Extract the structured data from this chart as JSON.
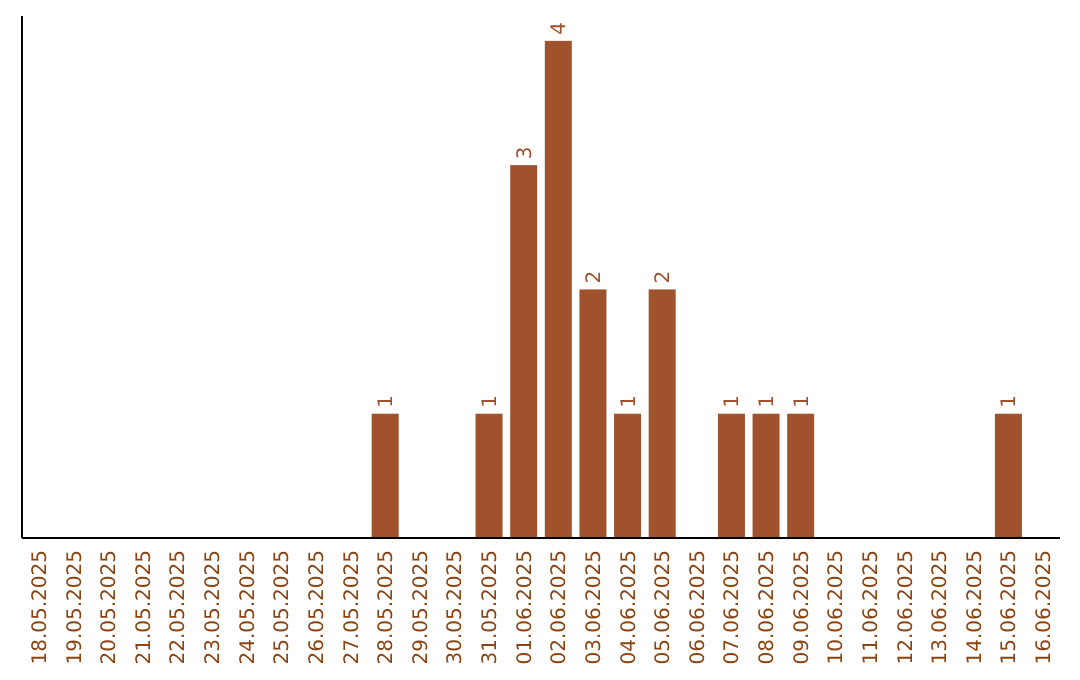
{
  "chart_data": {
    "type": "bar",
    "categories": [
      "18.05.2025",
      "19.05.2025",
      "20.05.2025",
      "21.05.2025",
      "22.05.2025",
      "23.05.2025",
      "24.05.2025",
      "25.05.2025",
      "26.05.2025",
      "27.05.2025",
      "28.05.2025",
      "29.05.2025",
      "30.05.2025",
      "31.05.2025",
      "01.06.2025",
      "02.06.2025",
      "03.06.2025",
      "04.06.2025",
      "05.06.2025",
      "06.06.2025",
      "07.06.2025",
      "08.06.2025",
      "09.06.2025",
      "10.06.2025",
      "11.06.2025",
      "12.06.2025",
      "13.06.2025",
      "14.06.2025",
      "15.06.2025",
      "16.06.2025"
    ],
    "values": [
      0,
      0,
      0,
      0,
      0,
      0,
      0,
      0,
      0,
      0,
      1,
      0,
      0,
      1,
      3,
      4,
      2,
      1,
      2,
      0,
      1,
      1,
      1,
      0,
      0,
      0,
      0,
      0,
      1,
      0
    ],
    "value_labels": [
      null,
      null,
      null,
      null,
      null,
      null,
      null,
      null,
      null,
      null,
      "1",
      null,
      null,
      "1",
      "3",
      "4",
      "2",
      "1",
      "2",
      null,
      "1",
      "1",
      "1",
      null,
      null,
      null,
      null,
      null,
      "1",
      null
    ],
    "color": "#a0522d",
    "tick_labels": "x"
  }
}
